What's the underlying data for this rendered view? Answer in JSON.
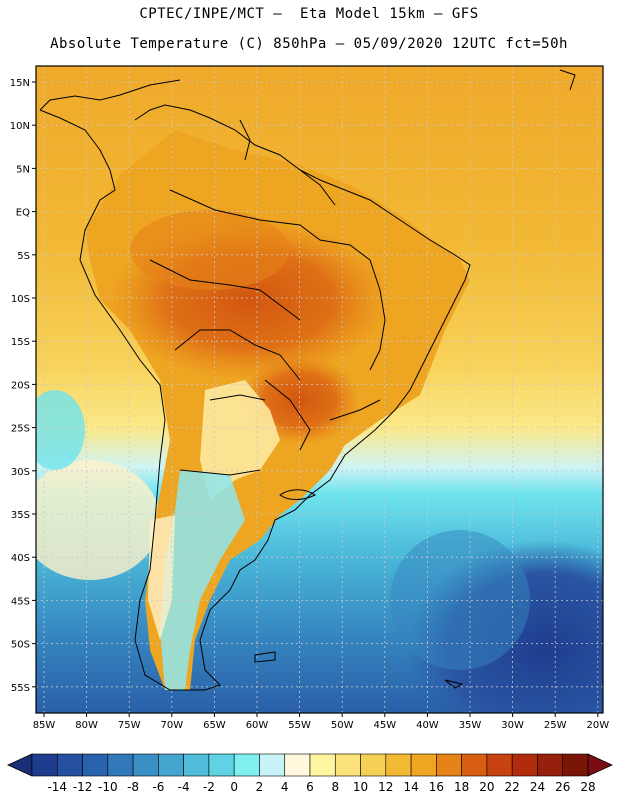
{
  "header": {
    "line1": "CPTEC/INPE/MCT –  Eta Model 15km – GFS",
    "line2": "Absolute Temperature (C) 850hPa – 05/09/2020 12UTC fct=50h"
  },
  "axes": {
    "lat_labels": [
      "15N",
      "10N",
      "5N",
      "EQ",
      "5S",
      "10S",
      "15S",
      "20S",
      "25S",
      "30S",
      "35S",
      "40S",
      "45S",
      "50S",
      "55S"
    ],
    "lon_labels": [
      "85W",
      "80W",
      "75W",
      "70W",
      "65W",
      "60W",
      "55W",
      "50W",
      "45W",
      "40W",
      "35W",
      "30W",
      "25W",
      "20W"
    ]
  },
  "colorbar": {
    "labels": [
      "-14",
      "-12",
      "-10",
      "-8",
      "-6",
      "-4",
      "-2",
      "0",
      "2",
      "4",
      "6",
      "8",
      "10",
      "12",
      "14",
      "16",
      "18",
      "20",
      "22",
      "24",
      "26",
      "28"
    ],
    "colors": [
      "#1f3d8f",
      "#24509f",
      "#2a63ad",
      "#3078b8",
      "#3a8fc4",
      "#44a6ce",
      "#4fbdd9",
      "#5fd3e3",
      "#7ff0f0",
      "#c8f4f8",
      "#fff8dc",
      "#fff5a0",
      "#fce27a",
      "#f6cf55",
      "#f2b935",
      "#eea521",
      "#e58218",
      "#d85f12",
      "#c8430f",
      "#b12c0d",
      "#95200b",
      "#7a1608"
    ],
    "under_color": "#1a2e7a",
    "over_color": "#7a0c14"
  },
  "colors": {
    "ocean_south": "#3a9fd0",
    "ocean_tropic": "#f0a92a",
    "coastline": "#000000",
    "grid": "#c9c9c9"
  }
}
